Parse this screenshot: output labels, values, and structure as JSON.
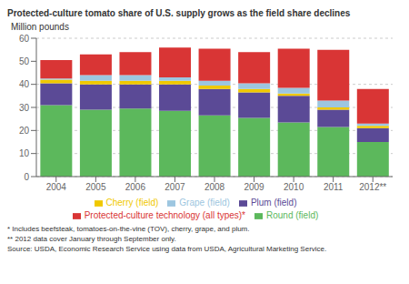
{
  "chart_data": {
    "type": "bar",
    "stacked": true,
    "title": "Protected-culture tomato share of U.S. supply grows as the field share declines",
    "y_label": "Million pounds",
    "categories": [
      "2004",
      "2005",
      "2006",
      "2007",
      "2008",
      "2009",
      "2010",
      "2011",
      "2012**"
    ],
    "series": [
      {
        "name": "Round (field)",
        "color": "#5cb85c",
        "values": [
          31,
          29,
          29.5,
          28.5,
          26.5,
          25.5,
          23.5,
          21.5,
          15
        ]
      },
      {
        "name": "Plum (field)",
        "color": "#5b4a96",
        "values": [
          9.5,
          11,
          10.5,
          11.5,
          11.5,
          11,
          11.5,
          7.5,
          6
        ]
      },
      {
        "name": "Cherry (field)",
        "color": "#f0c800",
        "values": [
          1.5,
          1.5,
          1.5,
          1.5,
          1.5,
          1.5,
          1.0,
          1.0,
          1.0
        ]
      },
      {
        "name": "Grape (field)",
        "color": "#9dc6e0",
        "values": [
          0.5,
          2.5,
          2.5,
          1.5,
          2.0,
          2.5,
          2.5,
          3.0,
          1.0
        ]
      },
      {
        "name": "Protected-culture technology (all types)*",
        "color": "#d93535",
        "values": [
          8,
          9,
          10,
          13,
          14,
          13.5,
          17,
          22,
          15
        ]
      }
    ],
    "ylim": [
      0,
      60
    ],
    "yticks": [
      0,
      10,
      20,
      30,
      40,
      50,
      60
    ],
    "grid": true,
    "annotations": [
      "* Includes beefsteak, tomatoes-on-the-vine (TOV), cherry, grape, and plum.",
      "** 2012 data cover January through September only.",
      "Source: USDA, Economic Research Service using data from USDA, Agricultural Marketing Service."
    ]
  }
}
